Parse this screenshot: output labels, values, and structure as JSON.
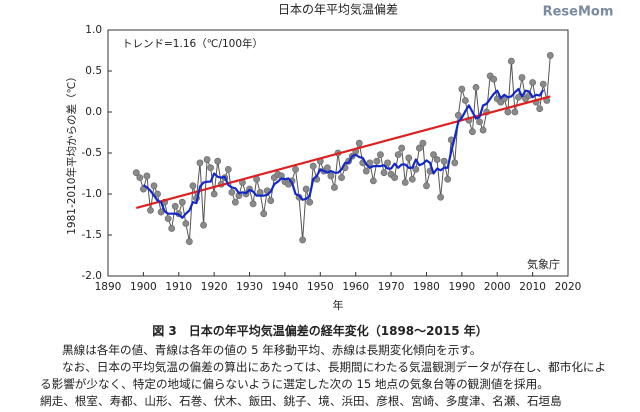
{
  "watermark": "ReseMom",
  "chart_data": {
    "type": "line",
    "title": "日本の年平均気温偏差",
    "annotation": "トレンド=1.16（℃/100年）",
    "source": "気象庁",
    "xlabel": "年",
    "ylabel": "1981-2010年平均からの差（℃）",
    "xlim": [
      1890,
      2020
    ],
    "xticks": [
      1890,
      1900,
      1910,
      1920,
      1930,
      1940,
      1950,
      1960,
      1970,
      1980,
      1990,
      2000,
      2010,
      2020
    ],
    "ylim": [
      -2,
      1
    ],
    "yticks": [
      {
        "value": -2,
        "label": "-2.0"
      },
      -1.5,
      {
        "value": -1,
        "label": "-1.0"
      },
      -0.5,
      {
        "value": 0,
        "label": "0.0"
      },
      0.5,
      {
        "value": 1,
        "label": "1.0"
      }
    ],
    "grid": false,
    "x": [
      1898,
      1899,
      1900,
      1901,
      1902,
      1903,
      1904,
      1905,
      1906,
      1907,
      1908,
      1909,
      1910,
      1911,
      1912,
      1913,
      1914,
      1915,
      1916,
      1917,
      1918,
      1919,
      1920,
      1921,
      1922,
      1923,
      1924,
      1925,
      1926,
      1927,
      1928,
      1929,
      1930,
      1931,
      1932,
      1933,
      1934,
      1935,
      1936,
      1937,
      1938,
      1939,
      1940,
      1941,
      1942,
      1943,
      1944,
      1945,
      1946,
      1947,
      1948,
      1949,
      1950,
      1951,
      1952,
      1953,
      1954,
      1955,
      1956,
      1957,
      1958,
      1959,
      1960,
      1961,
      1962,
      1963,
      1964,
      1965,
      1966,
      1967,
      1968,
      1969,
      1970,
      1971,
      1972,
      1973,
      1974,
      1975,
      1976,
      1977,
      1978,
      1979,
      1980,
      1981,
      1982,
      1983,
      1984,
      1985,
      1986,
      1987,
      1988,
      1989,
      1990,
      1991,
      1992,
      1993,
      1994,
      1995,
      1996,
      1997,
      1998,
      1999,
      2000,
      2001,
      2002,
      2003,
      2004,
      2005,
      2006,
      2007,
      2008,
      2009,
      2010,
      2011,
      2012,
      2013,
      2014,
      2015
    ],
    "series": [
      {
        "color": "#555555",
        "markers": true,
        "values": [
          -0.74,
          -0.8,
          -0.94,
          -0.78,
          -1.2,
          -0.9,
          -1.0,
          -1.22,
          -1.1,
          -1.3,
          -1.42,
          -1.15,
          -1.24,
          -1.1,
          -1.36,
          -1.58,
          -0.9,
          -1.05,
          -0.62,
          -1.38,
          -0.58,
          -0.68,
          -1.0,
          -0.6,
          -0.88,
          -0.8,
          -0.7,
          -0.98,
          -1.1,
          -1.02,
          -0.86,
          -1.0,
          -0.94,
          -1.12,
          -0.82,
          -0.98,
          -1.24,
          -0.96,
          -1.08,
          -0.8,
          -0.76,
          -0.78,
          -0.85,
          -0.88,
          -0.84,
          -0.7,
          -1.04,
          -1.56,
          -0.94,
          -1.1,
          -0.66,
          -0.82,
          -0.6,
          -0.72,
          -0.68,
          -0.78,
          -0.92,
          -0.5,
          -0.8,
          -0.68,
          -0.6,
          -0.54,
          -0.48,
          -0.38,
          -0.62,
          -0.72,
          -0.62,
          -0.84,
          -0.6,
          -0.52,
          -0.74,
          -0.62,
          -0.76,
          -0.8,
          -0.52,
          -0.44,
          -0.86,
          -0.56,
          -0.82,
          -0.7,
          -0.44,
          -0.38,
          -0.9,
          -0.72,
          -0.52,
          -0.58,
          -1.04,
          -0.6,
          -0.82,
          -0.34,
          -0.62,
          -0.04,
          0.28,
          0.14,
          -0.1,
          -0.24,
          0.3,
          -0.12,
          -0.22,
          0.0,
          0.44,
          0.4,
          0.16,
          0.12,
          0.16,
          0.0,
          0.62,
          0.0,
          0.18,
          0.42,
          0.16,
          0.2,
          0.36,
          0.12,
          0.04,
          0.34,
          0.14,
          0.69
        ]
      },
      {
        "color": "#1428c8",
        "markers": false,
        "values": [
          null,
          null,
          -0.89,
          -0.92,
          -0.96,
          -1.02,
          -1.08,
          -1.1,
          -1.21,
          -1.24,
          -1.24,
          -1.24,
          -1.25,
          -1.29,
          -1.24,
          -1.2,
          -1.1,
          -1.11,
          -0.91,
          -0.86,
          -0.85,
          -0.85,
          -0.75,
          -0.79,
          -0.8,
          -0.79,
          -0.89,
          -0.92,
          -0.93,
          -0.99,
          -0.98,
          -0.99,
          -0.95,
          -0.97,
          -1.02,
          -1.02,
          -1.02,
          -1.01,
          -0.97,
          -0.88,
          -0.85,
          -0.81,
          -0.82,
          -0.81,
          -0.86,
          -1.0,
          -1.02,
          -1.07,
          -1.06,
          -1.02,
          -0.82,
          -0.78,
          -0.7,
          -0.72,
          -0.74,
          -0.72,
          -0.74,
          -0.74,
          -0.7,
          -0.62,
          -0.62,
          -0.54,
          -0.52,
          -0.55,
          -0.56,
          -0.64,
          -0.68,
          -0.66,
          -0.66,
          -0.66,
          -0.65,
          -0.69,
          -0.69,
          -0.63,
          -0.68,
          -0.64,
          -0.64,
          -0.68,
          -0.68,
          -0.58,
          -0.65,
          -0.63,
          -0.59,
          -0.62,
          -0.75,
          -0.69,
          -0.71,
          -0.68,
          -0.68,
          -0.48,
          -0.31,
          -0.12,
          -0.07,
          0.01,
          0.08,
          0.0,
          -0.08,
          -0.06,
          0.08,
          0.1,
          0.16,
          0.22,
          0.26,
          0.17,
          0.21,
          0.18,
          0.19,
          0.24,
          0.28,
          0.19,
          0.26,
          0.25,
          0.18,
          0.21,
          0.2,
          0.27,
          null,
          null
        ]
      },
      {
        "color": "#e02020",
        "markers": false,
        "x": [
          1898,
          2015
        ],
        "values": [
          -1.17,
          0.19
        ]
      }
    ]
  },
  "caption": "図 3　日本の年平均気温偏差の経年変化（1898～2015 年）",
  "paragraphs": [
    "黒線は各年の値、青線は各年の値の 5 年移動平均、赤線は長期変化傾向を示す。",
    "なお、日本の平均気温の偏差の算出にあたっては、長期間にわたる気温観測データが存在し、都市化によ",
    "る影響が少なく、特定の地域に偏らないように選定した次の 15 地点の気象台等の観測値を採用。",
    "網走、根室、寿都、山形、石巻、伏木、飯田、銚子、境、浜田、彦根、宮崎、多度津、名瀬、石垣島"
  ]
}
